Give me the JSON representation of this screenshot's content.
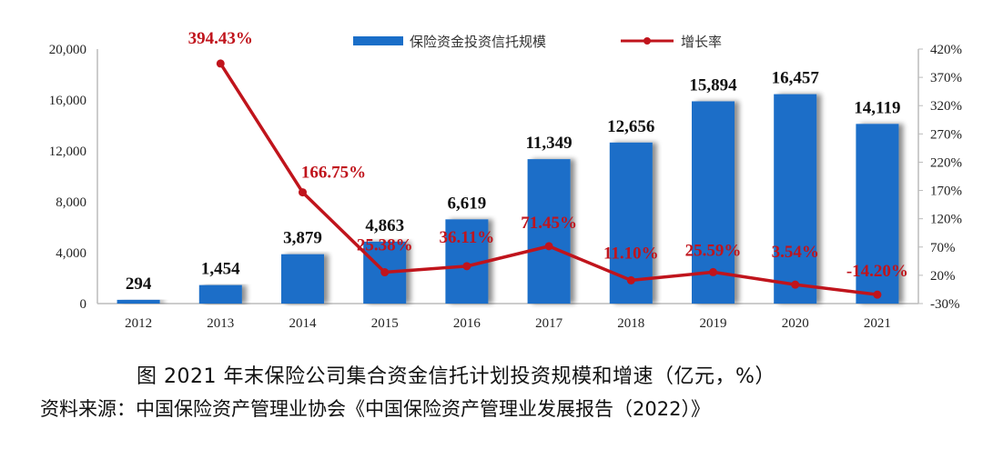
{
  "chart_data": {
    "type": "bar+line",
    "title": "图 2021 年末保险公司集合资金信托计划投资规模和增速（亿元，%）",
    "source": "资料来源：中国保险资产管理业协会《中国保险资产管理业发展报告（2022）》",
    "categories": [
      "2012",
      "2013",
      "2014",
      "2015",
      "2016",
      "2017",
      "2018",
      "2019",
      "2020",
      "2021"
    ],
    "series": [
      {
        "name": "保险资金投资信托规模",
        "type": "bar",
        "axis": "left",
        "color": "#1a6ec8",
        "values": [
          294,
          1454,
          3879,
          4863,
          6619,
          11349,
          12656,
          15894,
          16457,
          14119
        ],
        "labels": [
          "294",
          "1,454",
          "3,879",
          "4,863",
          "6,619",
          "11,349",
          "12,656",
          "15,894",
          "16,457",
          "14,119"
        ]
      },
      {
        "name": "增长率",
        "type": "line",
        "axis": "right",
        "color": "#c0141c",
        "values": [
          null,
          394.43,
          166.75,
          25.38,
          36.11,
          71.45,
          11.1,
          25.59,
          3.54,
          -14.2
        ],
        "labels": [
          "",
          "394.43%",
          "166.75%",
          "25.38%",
          "36.11%",
          "71.45%",
          "11.10%",
          "25.59%",
          "3.54%",
          "-14.20%"
        ]
      }
    ],
    "left_axis": {
      "ylim": [
        0,
        20000
      ],
      "ticks": [
        "0",
        "4,000",
        "8,000",
        "12,000",
        "16,000",
        "20,000"
      ],
      "tick_values": [
        0,
        4000,
        8000,
        12000,
        16000,
        20000
      ]
    },
    "right_axis": {
      "ylim": [
        -30,
        420
      ],
      "ticks": [
        "-30%",
        "20%",
        "70%",
        "120%",
        "170%",
        "220%",
        "270%",
        "320%",
        "370%",
        "420%"
      ],
      "tick_values": [
        -30,
        20,
        70,
        120,
        170,
        220,
        270,
        320,
        370,
        420
      ]
    },
    "legend": {
      "position": "top",
      "entries": [
        "保险资金投资信托规模",
        "增长率"
      ]
    },
    "grid": false,
    "xlabel": "",
    "ylabel": ""
  },
  "caption": "图  2021 年末保险公司集合资金信托计划投资规模和增速（亿元，%）",
  "source_note": "资料来源：中国保险资产管理业协会《中国保险资产管理业发展报告（2022）》"
}
